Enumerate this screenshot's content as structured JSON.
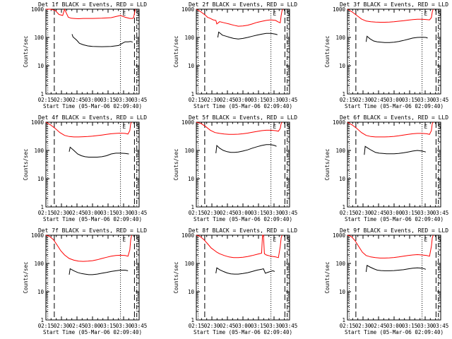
{
  "chart_data": [
    {
      "type": "line",
      "title": "Det 1f BLACK = Events, RED = LLD",
      "ylabel": "Counts/sec",
      "xlabel": "Start Time (05-Mar-06 02:09:40)",
      "xticks": [
        "02:15",
        "02:30",
        "02:45",
        "03:00",
        "03:15",
        "03:30",
        "03:45"
      ],
      "yticks": [
        "1",
        "10",
        "100",
        "1000"
      ],
      "ylim": [
        1,
        1000
      ],
      "yscale": "log",
      "markers": [
        "E",
        "S"
      ],
      "series": [
        {
          "color": "#000000",
          "x": [
            28,
            29,
            33,
            36,
            40,
            45,
            50,
            60,
            70,
            78,
            82,
            85,
            88,
            91,
            93
          ],
          "y": [
            130,
            105,
            80,
            62,
            55,
            50,
            48,
            47,
            48,
            52,
            62,
            70,
            70,
            72,
            68
          ]
        },
        {
          "color": "#ff0000",
          "x": [
            0,
            5,
            10,
            14,
            18,
            20,
            24,
            27,
            30,
            35,
            40,
            50,
            60,
            70,
            76,
            80,
            85,
            90,
            93,
            94,
            95,
            96
          ],
          "y": [
            1000,
            1000,
            900,
            650,
            600,
            1000,
            520,
            480,
            470,
            460,
            470,
            470,
            480,
            500,
            560,
            600,
            520,
            470,
            470,
            500,
            700,
            1000
          ]
        }
      ]
    },
    {
      "type": "line",
      "title": "Det 2f BLACK = Events, RED = LLD",
      "ylabel": "Counts/sec",
      "xlabel": "Start Time (05-Mar-06 02:09:40)",
      "xticks": [
        "02:15",
        "02:30",
        "02:45",
        "03:00",
        "03:15",
        "03:30",
        "03:45"
      ],
      "yticks": [
        "1",
        "10",
        "100",
        "1000"
      ],
      "ylim": [
        1,
        1000
      ],
      "yscale": "log",
      "markers": [
        "E",
        "S"
      ],
      "series": [
        {
          "color": "#000000",
          "x": [
            23,
            24,
            28,
            32,
            36,
            40,
            45,
            50,
            55,
            60,
            65,
            70,
            75,
            80,
            85,
            87
          ],
          "y": [
            100,
            155,
            120,
            110,
            100,
            92,
            88,
            92,
            100,
            110,
            120,
            130,
            140,
            140,
            130,
            125
          ]
        },
        {
          "color": "#ff0000",
          "x": [
            0,
            5,
            10,
            12,
            15,
            18,
            21,
            22,
            25,
            30,
            35,
            40,
            45,
            50,
            55,
            60,
            65,
            70,
            75,
            80,
            85,
            88,
            90,
            91,
            92,
            93
          ],
          "y": [
            1000,
            800,
            600,
            520,
            470,
            420,
            400,
            300,
            360,
            330,
            300,
            270,
            250,
            255,
            270,
            300,
            340,
            370,
            400,
            420,
            400,
            350,
            330,
            600,
            900,
            1000
          ]
        }
      ]
    },
    {
      "type": "line",
      "title": "Det 3f BLACK = Events, RED = LLD",
      "ylabel": "Counts/sec",
      "xlabel": "Start Time (05-Mar-06 02:09:40)",
      "xticks": [
        "02:15",
        "02:30",
        "02:45",
        "03:00",
        "03:15",
        "03:30",
        "03:45"
      ],
      "yticks": [
        "1",
        "10",
        "100",
        "1000"
      ],
      "ylim": [
        1,
        1000
      ],
      "yscale": "log",
      "markers": [
        "E",
        "S"
      ],
      "series": [
        {
          "color": "#000000",
          "x": [
            20,
            21,
            24,
            28,
            32,
            36,
            40,
            45,
            50,
            55,
            60,
            65,
            70,
            75,
            80,
            84,
            86
          ],
          "y": [
            70,
            110,
            90,
            75,
            70,
            68,
            66,
            66,
            68,
            72,
            78,
            86,
            95,
            100,
            102,
            100,
            95
          ]
        },
        {
          "color": "#ff0000",
          "x": [
            0,
            5,
            10,
            15,
            20,
            25,
            30,
            35,
            40,
            45,
            50,
            55,
            60,
            65,
            70,
            75,
            80,
            85,
            88,
            90,
            91,
            92
          ],
          "y": [
            1000,
            800,
            600,
            450,
            380,
            360,
            350,
            345,
            345,
            350,
            360,
            375,
            390,
            410,
            430,
            440,
            440,
            430,
            420,
            500,
            800,
            1000
          ]
        }
      ]
    },
    {
      "type": "line",
      "title": "Det 4f BLACK = Events, RED = LLD",
      "ylabel": "Counts/sec",
      "xlabel": "Start Time (05-Mar-06 02:09:40)",
      "xticks": [
        "02:15",
        "02:30",
        "02:45",
        "03:00",
        "03:15",
        "03:30",
        "03:45"
      ],
      "yticks": [
        "1",
        "10",
        "100",
        "1000"
      ],
      "ylim": [
        1,
        1000
      ],
      "yscale": "log",
      "markers": [
        "E",
        "S"
      ],
      "series": [
        {
          "color": "#000000",
          "x": [
            25,
            26,
            30,
            34,
            38,
            42,
            46,
            50,
            55,
            60,
            65,
            70,
            75,
            80,
            85,
            89
          ],
          "y": [
            90,
            130,
            100,
            75,
            65,
            60,
            58,
            58,
            58,
            60,
            65,
            75,
            80,
            80,
            78,
            75
          ]
        },
        {
          "color": "#ff0000",
          "x": [
            0,
            5,
            10,
            15,
            20,
            25,
            30,
            35,
            40,
            45,
            50,
            55,
            60,
            65,
            70,
            75,
            80,
            85,
            88,
            90,
            91,
            92
          ],
          "y": [
            1000,
            800,
            600,
            430,
            340,
            310,
            300,
            300,
            305,
            310,
            320,
            335,
            350,
            370,
            390,
            400,
            410,
            400,
            380,
            500,
            900,
            1000
          ]
        }
      ]
    },
    {
      "type": "line",
      "title": "Det 5f BLACK = Events, RED = LLD",
      "ylabel": "Counts/sec",
      "xlabel": "Start Time (05-Mar-06 02:09:40)",
      "xticks": [
        "02:15",
        "02:30",
        "02:45",
        "03:00",
        "03:15",
        "03:30",
        "03:45"
      ],
      "yticks": [
        "1",
        "10",
        "100",
        "1000"
      ],
      "ylim": [
        1,
        1000
      ],
      "yscale": "log",
      "markers": [
        "E",
        "S"
      ],
      "series": [
        {
          "color": "#000000",
          "x": [
            21,
            22,
            25,
            29,
            33,
            37,
            41,
            45,
            50,
            55,
            60,
            65,
            70,
            75,
            80,
            84,
            86
          ],
          "y": [
            80,
            150,
            120,
            100,
            90,
            85,
            85,
            88,
            95,
            105,
            120,
            135,
            150,
            160,
            160,
            150,
            140
          ]
        },
        {
          "color": "#ff0000",
          "x": [
            0,
            5,
            10,
            15,
            20,
            25,
            30,
            35,
            40,
            45,
            50,
            55,
            60,
            65,
            70,
            75,
            80,
            85,
            88,
            90,
            91,
            92
          ],
          "y": [
            1000,
            900,
            700,
            520,
            430,
            400,
            380,
            370,
            370,
            375,
            390,
            410,
            440,
            470,
            500,
            520,
            520,
            500,
            480,
            600,
            900,
            1000
          ]
        }
      ]
    },
    {
      "type": "line",
      "title": "Det 6f BLACK = Events, RED = LLD",
      "ylabel": "Counts/sec",
      "xlabel": "Start Time (05-Mar-06 02:09:40)",
      "xticks": [
        "02:15",
        "02:30",
        "02:45",
        "03:00",
        "03:15",
        "03:30",
        "03:45"
      ],
      "yticks": [
        "1",
        "10",
        "100",
        "1000"
      ],
      "ylim": [
        1,
        1000
      ],
      "yscale": "log",
      "markers": [
        "E",
        "S"
      ],
      "series": [
        {
          "color": "#000000",
          "x": [
            18,
            19,
            22,
            26,
            30,
            34,
            38,
            42,
            46,
            50,
            55,
            60,
            65,
            70,
            75,
            80,
            84
          ],
          "y": [
            70,
            140,
            120,
            100,
            85,
            80,
            78,
            76,
            76,
            76,
            78,
            82,
            88,
            95,
            100,
            95,
            88
          ]
        },
        {
          "color": "#ff0000",
          "x": [
            0,
            5,
            10,
            15,
            20,
            25,
            30,
            35,
            40,
            45,
            50,
            55,
            60,
            65,
            70,
            75,
            80,
            85,
            88,
            90,
            91,
            92
          ],
          "y": [
            1000,
            800,
            600,
            430,
            340,
            310,
            300,
            300,
            300,
            305,
            315,
            330,
            350,
            370,
            390,
            400,
            400,
            390,
            370,
            500,
            900,
            1000
          ]
        }
      ]
    },
    {
      "type": "line",
      "title": "Det 7f BLACK = Events, RED = LLD",
      "ylabel": "Counts/sec",
      "xlabel": "Start Time (05-Mar-06 02:09:40)",
      "xticks": [
        "02:15",
        "02:30",
        "02:45",
        "03:00",
        "03:15",
        "03:30",
        "03:45"
      ],
      "yticks": [
        "1",
        "10",
        "100",
        "1000"
      ],
      "ylim": [
        1,
        1000
      ],
      "yscale": "log",
      "markers": [
        "E",
        "S"
      ],
      "series": [
        {
          "color": "#000000",
          "x": [
            25,
            26,
            30,
            34,
            38,
            42,
            46,
            50,
            55,
            60,
            65,
            70,
            75,
            80,
            85,
            88
          ],
          "y": [
            40,
            65,
            55,
            48,
            44,
            42,
            40,
            40,
            42,
            45,
            48,
            52,
            55,
            58,
            58,
            55
          ]
        },
        {
          "color": "#ff0000",
          "x": [
            0,
            4,
            8,
            12,
            16,
            20,
            25,
            30,
            35,
            40,
            45,
            50,
            55,
            60,
            65,
            70,
            75,
            80,
            85,
            88,
            90,
            91,
            92
          ],
          "y": [
            1000,
            900,
            700,
            450,
            280,
            200,
            150,
            130,
            120,
            118,
            120,
            125,
            135,
            150,
            165,
            180,
            190,
            195,
            190,
            180,
            300,
            700,
            1000
          ]
        }
      ]
    },
    {
      "type": "line",
      "title": "Det 8f BLACK = Events, RED = LLD",
      "ylabel": "Counts/sec",
      "xlabel": "Start Time (05-Mar-06 02:09:40)",
      "xticks": [
        "02:15",
        "02:30",
        "02:45",
        "03:00",
        "03:15",
        "03:30",
        "03:45"
      ],
      "yticks": [
        "1",
        "10",
        "100",
        "1000"
      ],
      "ylim": [
        1,
        1000
      ],
      "yscale": "log",
      "markers": [
        "E",
        "S"
      ],
      "series": [
        {
          "color": "#000000",
          "x": [
            21,
            22,
            25,
            29,
            33,
            37,
            41,
            45,
            50,
            55,
            60,
            65,
            70,
            72,
            74,
            78,
            82,
            84
          ],
          "y": [
            45,
            70,
            60,
            52,
            46,
            43,
            42,
            42,
            44,
            47,
            52,
            58,
            62,
            65,
            45,
            50,
            55,
            52
          ]
        },
        {
          "color": "#ff0000",
          "x": [
            0,
            4,
            8,
            12,
            16,
            20,
            22,
            25,
            30,
            35,
            40,
            45,
            50,
            55,
            60,
            65,
            70,
            71,
            72,
            73,
            75,
            80,
            85,
            88,
            90,
            91,
            92
          ],
          "y": [
            1000,
            900,
            700,
            500,
            350,
            280,
            250,
            220,
            190,
            170,
            160,
            160,
            165,
            175,
            190,
            210,
            230,
            1000,
            1000,
            220,
            200,
            180,
            170,
            160,
            400,
            800,
            1000
          ]
        }
      ]
    },
    {
      "type": "line",
      "title": "Det 9f BLACK = Events, RED = LLD",
      "ylabel": "Counts/sec",
      "xlabel": "Start Time (05-Mar-06 02:09:40)",
      "xticks": [
        "02:15",
        "02:30",
        "02:45",
        "03:00",
        "03:15",
        "03:30",
        "03:45"
      ],
      "yticks": [
        "1",
        "10",
        "100",
        "1000"
      ],
      "ylim": [
        1,
        1000
      ],
      "yscale": "log",
      "markers": [
        "E",
        "S"
      ],
      "series": [
        {
          "color": "#000000",
          "x": [
            20,
            21,
            24,
            28,
            32,
            36,
            40,
            45,
            50,
            55,
            60,
            65,
            70,
            75,
            80,
            84
          ],
          "y": [
            50,
            85,
            75,
            65,
            58,
            56,
            55,
            55,
            56,
            58,
            60,
            64,
            68,
            70,
            68,
            62
          ]
        },
        {
          "color": "#ff0000",
          "x": [
            0,
            4,
            8,
            12,
            16,
            20,
            25,
            30,
            35,
            40,
            45,
            50,
            55,
            60,
            65,
            70,
            75,
            80,
            85,
            88,
            90,
            91,
            92
          ],
          "y": [
            1000,
            900,
            650,
            400,
            250,
            190,
            170,
            160,
            155,
            155,
            158,
            162,
            170,
            180,
            190,
            200,
            205,
            200,
            190,
            180,
            400,
            800,
            1000
          ]
        }
      ]
    }
  ]
}
